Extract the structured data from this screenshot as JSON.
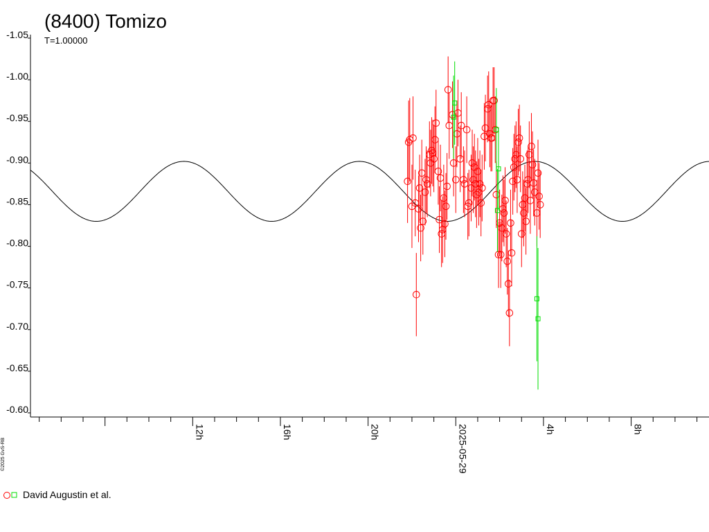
{
  "chart_data": {
    "type": "scatter",
    "title": "(8400) Tomizo",
    "subtitle": "T=1.00000",
    "credit": "©2025 GvS-RB",
    "y_axis": {
      "min": -1.05,
      "max": -0.6,
      "step": 0.05,
      "inverted": true,
      "tick_labels": [
        "-1.05",
        "-1.00",
        "-0.95",
        "-0.90",
        "-0.85",
        "-0.80",
        "-0.75",
        "-0.70",
        "-0.65",
        "-0.60"
      ]
    },
    "x_axis": {
      "start_hour": 4.6,
      "end_hour": 35.55,
      "major_ticks": [
        {
          "hour": 12,
          "label": "12h"
        },
        {
          "hour": 16,
          "label": "16h"
        },
        {
          "hour": 20,
          "label": "20h"
        },
        {
          "hour": 24,
          "label": "2025-05-29"
        },
        {
          "hour": 28,
          "label": "4h"
        },
        {
          "hour": 32,
          "label": "8h"
        },
        {
          "hour": 36,
          "label": "12h"
        }
      ]
    },
    "model_curve": {
      "mean": -0.866,
      "amplitude": 0.036,
      "period_hours": 8.0,
      "peak_hour": 11.6,
      "color": "#000000"
    },
    "series": [
      {
        "name": "David Augustin et al.",
        "marker": "circle",
        "color": "#ff0000",
        "points": [
          [
            21.8,
            -0.878,
            0.05
          ],
          [
            21.85,
            -0.925,
            0.05
          ],
          [
            21.9,
            -0.928,
            0.05
          ],
          [
            22.0,
            -0.848,
            0.05
          ],
          [
            22.05,
            -0.93,
            0.05
          ],
          [
            22.15,
            -0.852,
            0.04
          ],
          [
            22.2,
            -0.742,
            0.05
          ],
          [
            22.3,
            -0.845,
            0.04
          ],
          [
            22.35,
            -0.87,
            0.04
          ],
          [
            22.4,
            -0.822,
            0.04
          ],
          [
            22.45,
            -0.888,
            0.04
          ],
          [
            22.5,
            -0.83,
            0.04
          ],
          [
            22.6,
            -0.865,
            0.04
          ],
          [
            22.65,
            -0.88,
            0.04
          ],
          [
            22.7,
            -0.875,
            0.04
          ],
          [
            22.8,
            -0.91,
            0.04
          ],
          [
            22.85,
            -0.9,
            0.04
          ],
          [
            22.9,
            -0.915,
            0.04
          ],
          [
            22.95,
            -0.912,
            0.04
          ],
          [
            23.0,
            -0.905,
            0.04
          ],
          [
            23.05,
            -0.928,
            0.04
          ],
          [
            23.1,
            -0.948,
            0.04
          ],
          [
            23.2,
            -0.89,
            0.04
          ],
          [
            23.25,
            -0.832,
            0.04
          ],
          [
            23.3,
            -0.882,
            0.04
          ],
          [
            23.35,
            -0.815,
            0.04
          ],
          [
            23.4,
            -0.82,
            0.04
          ],
          [
            23.45,
            -0.858,
            0.04
          ],
          [
            23.5,
            -0.827,
            0.04
          ],
          [
            23.55,
            -0.848,
            0.04
          ],
          [
            23.6,
            -0.872,
            0.04
          ],
          [
            23.65,
            -0.988,
            0.04
          ],
          [
            23.7,
            -0.945,
            0.04
          ],
          [
            23.85,
            -0.958,
            0.04
          ],
          [
            23.9,
            -0.9,
            0.04
          ],
          [
            24.0,
            -0.88,
            0.04
          ],
          [
            24.05,
            -0.935,
            0.04
          ],
          [
            24.1,
            -0.96,
            0.04
          ],
          [
            24.2,
            -0.905,
            0.04
          ],
          [
            24.25,
            -0.945,
            0.04
          ],
          [
            24.35,
            -0.88,
            0.04
          ],
          [
            24.4,
            -0.875,
            0.04
          ],
          [
            24.5,
            -0.94,
            0.04
          ],
          [
            24.55,
            -0.848,
            0.04
          ],
          [
            24.6,
            -0.852,
            0.04
          ],
          [
            24.7,
            -0.87,
            0.04
          ],
          [
            24.75,
            -0.9,
            0.04
          ],
          [
            24.8,
            -0.88,
            0.04
          ],
          [
            24.85,
            -0.895,
            0.04
          ],
          [
            24.9,
            -0.875,
            0.04
          ],
          [
            24.95,
            -0.862,
            0.04
          ],
          [
            25.0,
            -0.89,
            0.04
          ],
          [
            25.05,
            -0.865,
            0.04
          ],
          [
            25.1,
            -0.875,
            0.04
          ],
          [
            25.15,
            -0.852,
            0.04
          ],
          [
            25.2,
            -0.87,
            0.04
          ],
          [
            25.3,
            -0.932,
            0.04
          ],
          [
            25.35,
            -0.942,
            0.04
          ],
          [
            25.45,
            -0.965,
            0.04
          ],
          [
            25.5,
            -0.97,
            0.04
          ],
          [
            25.55,
            -0.935,
            0.04
          ],
          [
            25.6,
            -0.93,
            0.04
          ],
          [
            25.65,
            -0.93,
            0.04
          ],
          [
            25.7,
            -0.975,
            0.04
          ],
          [
            25.75,
            -0.975,
            0.04
          ],
          [
            25.8,
            -0.94,
            0.04
          ],
          [
            25.85,
            -0.862,
            0.04
          ],
          [
            25.95,
            -0.79,
            0.04
          ],
          [
            26.0,
            -0.828,
            0.04
          ],
          [
            26.05,
            -0.79,
            0.04
          ],
          [
            26.1,
            -0.822,
            0.04
          ],
          [
            26.15,
            -0.845,
            0.04
          ],
          [
            26.2,
            -0.84,
            0.04
          ],
          [
            26.25,
            -0.855,
            0.04
          ],
          [
            26.3,
            -0.815,
            0.04
          ],
          [
            26.35,
            -0.782,
            0.04
          ],
          [
            26.4,
            -0.755,
            0.04
          ],
          [
            26.45,
            -0.72,
            0.04
          ],
          [
            26.55,
            -0.792,
            0.04
          ],
          [
            26.5,
            -0.828,
            0.04
          ],
          [
            26.6,
            -0.878,
            0.04
          ],
          [
            26.65,
            -0.895,
            0.04
          ],
          [
            26.7,
            -0.905,
            0.04
          ],
          [
            26.75,
            -0.91,
            0.04
          ],
          [
            26.8,
            -0.88,
            0.04
          ],
          [
            26.85,
            -0.925,
            0.04
          ],
          [
            26.9,
            -0.93,
            0.04
          ],
          [
            26.95,
            -0.905,
            0.04
          ],
          [
            27.0,
            -0.815,
            0.04
          ],
          [
            27.05,
            -0.85,
            0.04
          ],
          [
            27.1,
            -0.84,
            0.04
          ],
          [
            27.15,
            -0.858,
            0.04
          ],
          [
            27.2,
            -0.83,
            0.04
          ],
          [
            27.25,
            -0.875,
            0.04
          ],
          [
            27.3,
            -0.88,
            0.04
          ],
          [
            27.35,
            -0.91,
            0.04
          ],
          [
            27.4,
            -0.855,
            0.04
          ],
          [
            27.45,
            -0.92,
            0.04
          ],
          [
            27.5,
            -0.898,
            0.04
          ],
          [
            27.55,
            -0.876,
            0.04
          ],
          [
            27.6,
            -0.865,
            0.04
          ],
          [
            27.7,
            -0.84,
            0.04
          ],
          [
            27.75,
            -0.888,
            0.04
          ],
          [
            27.8,
            -0.86,
            0.04
          ],
          [
            27.85,
            -0.85,
            0.04
          ]
        ]
      },
      {
        "name": "",
        "marker": "square",
        "color": "#00dd00",
        "points": [
          [
            23.9,
            -0.955,
            0.05
          ],
          [
            23.95,
            -0.972,
            0.05
          ],
          [
            25.85,
            -0.94,
            0.05
          ],
          [
            25.95,
            -0.893,
            0.05
          ],
          [
            25.9,
            -0.843,
            0.05
          ],
          [
            27.7,
            -0.737,
            0.075
          ],
          [
            27.75,
            -0.713,
            0.085
          ]
        ]
      }
    ],
    "legend": {
      "position": "bottom-left",
      "label": "David Augustin et al."
    },
    "grid": false
  }
}
